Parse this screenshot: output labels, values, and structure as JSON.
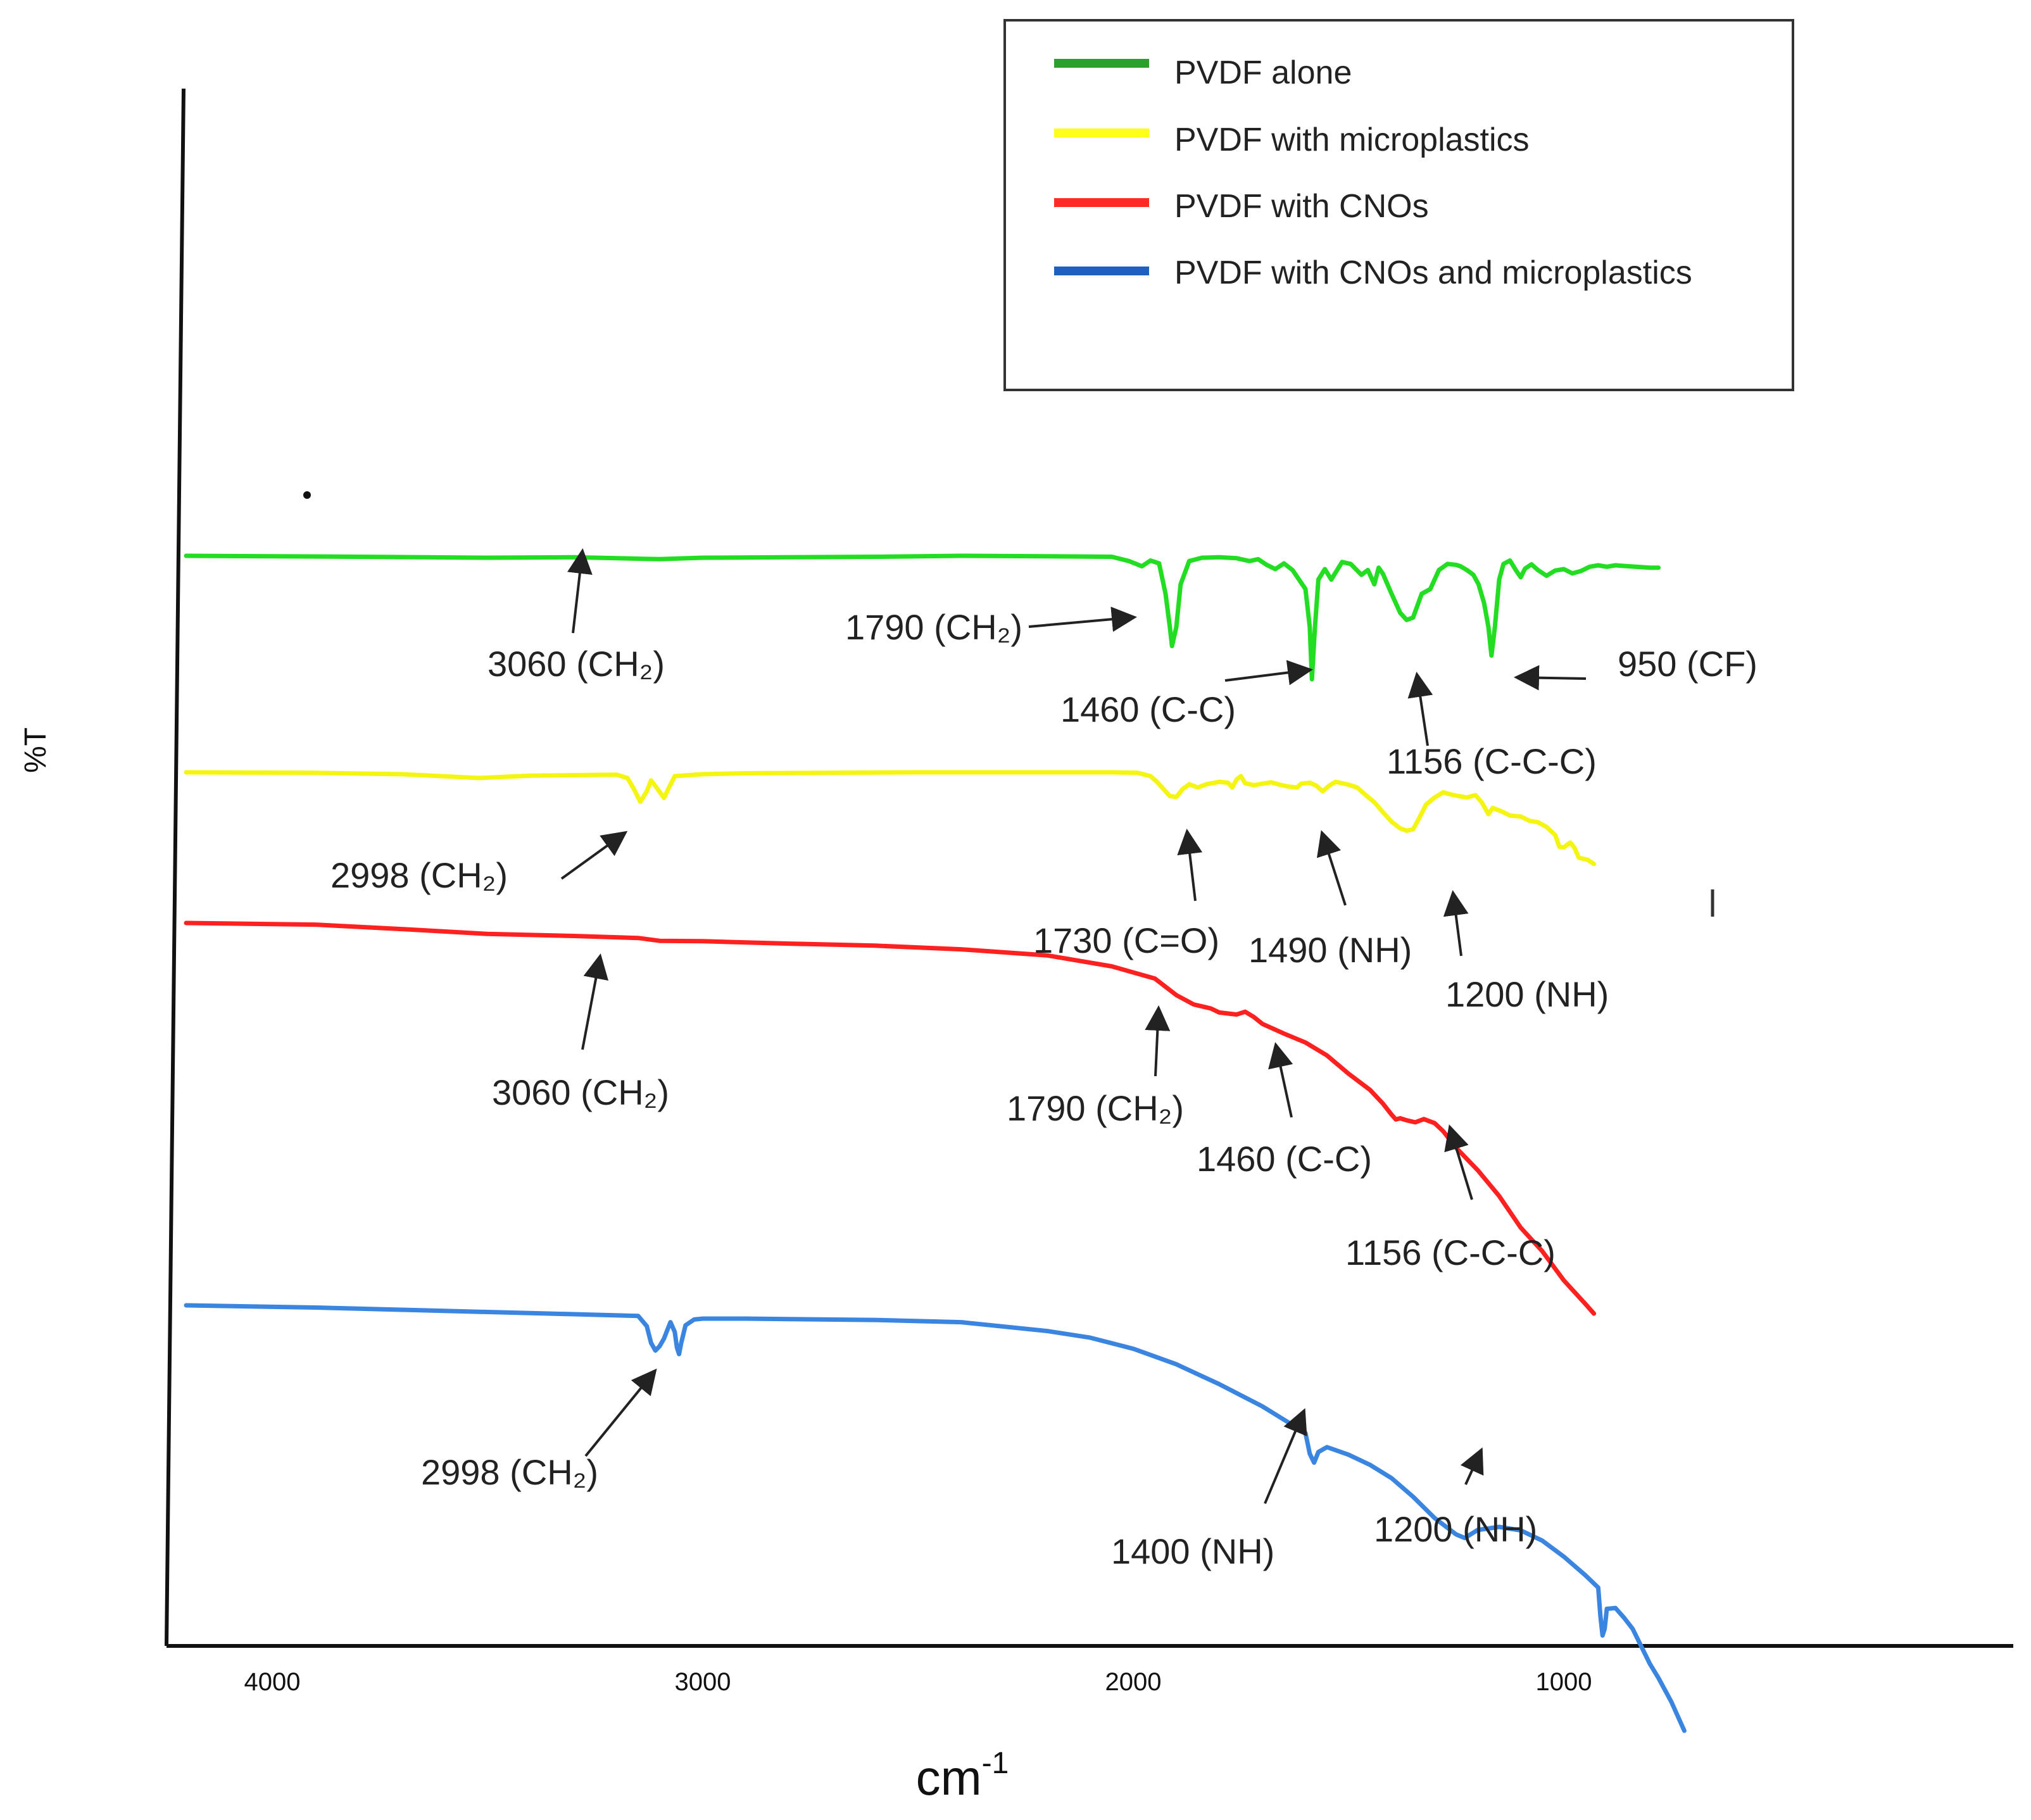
{
  "chart_data": {
    "type": "line",
    "title": "",
    "xlabel": "cm",
    "xlabel_superscript": "-1",
    "ylabel": "%T",
    "x_reversed": true,
    "xlim": [
      4200,
      0
    ],
    "x_ticks": [
      4000,
      3000,
      2000,
      1000
    ],
    "y_ticks": [],
    "grid": false,
    "legend_position": "top-right",
    "legend": [
      {
        "label": "PVDF alone",
        "color": "#2ca02c"
      },
      {
        "label": "PVDF with microplastics",
        "color": "#ffff1a"
      },
      {
        "label": "PVDF with CNOs",
        "color": "#ff2a2a"
      },
      {
        "label": "PVDF with CNOs and microplastics",
        "color": "#1f5fbf"
      }
    ],
    "series": [
      {
        "name": "PVDF alone",
        "color": "#22dd22",
        "offset": 100,
        "points": [
          [
            4200,
            100
          ],
          [
            3800,
            99.8
          ],
          [
            3500,
            99.6
          ],
          [
            3300,
            99.7
          ],
          [
            3200,
            99.5
          ],
          [
            3100,
            99.3
          ],
          [
            3000,
            99.6
          ],
          [
            2800,
            99.7
          ],
          [
            2600,
            99.8
          ],
          [
            2400,
            100
          ],
          [
            2200,
            99.9
          ],
          [
            2050,
            99.8
          ],
          [
            2010,
            98.9
          ],
          [
            1980,
            97.8
          ],
          [
            1960,
            99.0
          ],
          [
            1940,
            98.4
          ],
          [
            1925,
            92
          ],
          [
            1915,
            85
          ],
          [
            1910,
            81
          ],
          [
            1900,
            85
          ],
          [
            1890,
            94
          ],
          [
            1870,
            98.9
          ],
          [
            1840,
            99.6
          ],
          [
            1800,
            99.7
          ],
          [
            1760,
            99.5
          ],
          [
            1730,
            98.9
          ],
          [
            1710,
            99.3
          ],
          [
            1690,
            98.1
          ],
          [
            1670,
            97.2
          ],
          [
            1650,
            98.4
          ],
          [
            1630,
            97.0
          ],
          [
            1600,
            93
          ],
          [
            1590,
            85
          ],
          [
            1585,
            74
          ],
          [
            1578,
            85
          ],
          [
            1570,
            95
          ],
          [
            1555,
            97.2
          ],
          [
            1540,
            95
          ],
          [
            1515,
            98.7
          ],
          [
            1495,
            98.3
          ],
          [
            1470,
            96
          ],
          [
            1455,
            97
          ],
          [
            1440,
            94
          ],
          [
            1430,
            97.5
          ],
          [
            1420,
            96.2
          ],
          [
            1400,
            92
          ],
          [
            1380,
            88
          ],
          [
            1365,
            86.5
          ],
          [
            1350,
            87
          ],
          [
            1330,
            92
          ],
          [
            1310,
            93
          ],
          [
            1290,
            97
          ],
          [
            1270,
            98.3
          ],
          [
            1250,
            98.1
          ],
          [
            1240,
            97.8
          ],
          [
            1225,
            97
          ],
          [
            1210,
            96
          ],
          [
            1198,
            94
          ],
          [
            1185,
            90
          ],
          [
            1175,
            85
          ],
          [
            1168,
            79
          ],
          [
            1160,
            85
          ],
          [
            1150,
            95
          ],
          [
            1140,
            98.3
          ],
          [
            1125,
            99
          ],
          [
            1110,
            96.8
          ],
          [
            1100,
            95.5
          ],
          [
            1090,
            97.3
          ],
          [
            1075,
            98.2
          ],
          [
            1060,
            97.0
          ],
          [
            1040,
            95.8
          ],
          [
            1020,
            96.9
          ],
          [
            1000,
            97.2
          ],
          [
            980,
            96.3
          ],
          [
            960,
            96.8
          ],
          [
            940,
            97.7
          ],
          [
            920,
            98.0
          ],
          [
            900,
            97.7
          ],
          [
            880,
            98.0
          ],
          [
            850,
            97.8
          ],
          [
            800,
            97.5
          ],
          [
            780,
            97.5
          ]
        ]
      },
      {
        "name": "PVDF with microplastics",
        "color": "#f5f512",
        "offset": 65,
        "points": [
          [
            4200,
            100
          ],
          [
            3900,
            99.9
          ],
          [
            3700,
            99.6
          ],
          [
            3520,
            98.8
          ],
          [
            3400,
            99.3
          ],
          [
            3200,
            99.5
          ],
          [
            3175,
            98.8
          ],
          [
            3160,
            96.5
          ],
          [
            3145,
            93.8
          ],
          [
            3130,
            96.0
          ],
          [
            3120,
            98.3
          ],
          [
            3105,
            96.5
          ],
          [
            3090,
            94.6
          ],
          [
            3080,
            96.5
          ],
          [
            3065,
            99.2
          ],
          [
            3000,
            99.6
          ],
          [
            2900,
            99.8
          ],
          [
            2700,
            99.9
          ],
          [
            2500,
            100
          ],
          [
            2300,
            100
          ],
          [
            2150,
            100
          ],
          [
            2050,
            100
          ],
          [
            1990,
            99.9
          ],
          [
            1960,
            99.2
          ],
          [
            1945,
            98.0
          ],
          [
            1930,
            96.5
          ],
          [
            1915,
            95.0
          ],
          [
            1900,
            94.8
          ],
          [
            1885,
            96.5
          ],
          [
            1870,
            97.5
          ],
          [
            1850,
            96.8
          ],
          [
            1830,
            97.5
          ],
          [
            1800,
            98.0
          ],
          [
            1780,
            97.8
          ],
          [
            1770,
            96.8
          ],
          [
            1760,
            98.5
          ],
          [
            1750,
            99.2
          ],
          [
            1740,
            97.7
          ],
          [
            1720,
            97.3
          ],
          [
            1700,
            97.6
          ],
          [
            1680,
            97.9
          ],
          [
            1660,
            97.4
          ],
          [
            1640,
            97.0
          ],
          [
            1620,
            96.8
          ],
          [
            1610,
            97.6
          ],
          [
            1590,
            97.8
          ],
          [
            1575,
            97.2
          ],
          [
            1560,
            96.0
          ],
          [
            1545,
            97.2
          ],
          [
            1530,
            98.0
          ],
          [
            1500,
            97.4
          ],
          [
            1480,
            96.8
          ],
          [
            1460,
            95.2
          ],
          [
            1440,
            93.7
          ],
          [
            1420,
            91.6
          ],
          [
            1400,
            89.6
          ],
          [
            1380,
            88.2
          ],
          [
            1365,
            87.7
          ],
          [
            1350,
            88.0
          ],
          [
            1335,
            90.5
          ],
          [
            1320,
            93.2
          ],
          [
            1300,
            94.7
          ],
          [
            1280,
            95.8
          ],
          [
            1265,
            95.4
          ],
          [
            1245,
            95.0
          ],
          [
            1225,
            94.7
          ],
          [
            1205,
            95.2
          ],
          [
            1190,
            93.6
          ],
          [
            1180,
            92.0
          ],
          [
            1175,
            91.2
          ],
          [
            1165,
            92.5
          ],
          [
            1145,
            91.8
          ],
          [
            1125,
            90.9
          ],
          [
            1100,
            90.7
          ],
          [
            1080,
            89.8
          ],
          [
            1060,
            89.5
          ],
          [
            1040,
            88.5
          ],
          [
            1020,
            86.8
          ],
          [
            1010,
            84.3
          ],
          [
            1000,
            84.2
          ],
          [
            985,
            85.2
          ],
          [
            975,
            84.1
          ],
          [
            965,
            82.0
          ],
          [
            945,
            81.6
          ],
          [
            930,
            80.7
          ]
        ]
      },
      {
        "name": "PVDF with CNOs",
        "color": "#ff2020",
        "offset": 40,
        "points": [
          [
            4200,
            100
          ],
          [
            3900,
            99.6
          ],
          [
            3700,
            98.5
          ],
          [
            3500,
            97.3
          ],
          [
            3300,
            96.8
          ],
          [
            3150,
            96.3
          ],
          [
            3100,
            95.6
          ],
          [
            3000,
            95.5
          ],
          [
            2800,
            94.9
          ],
          [
            2600,
            94.4
          ],
          [
            2400,
            93.5
          ],
          [
            2200,
            92.0
          ],
          [
            2050,
            89.3
          ],
          [
            1950,
            86.3
          ],
          [
            1900,
            82.2
          ],
          [
            1860,
            79.9
          ],
          [
            1820,
            78.9
          ],
          [
            1800,
            77.9
          ],
          [
            1760,
            77.4
          ],
          [
            1740,
            78.1
          ],
          [
            1720,
            76.8
          ],
          [
            1700,
            75.1
          ],
          [
            1650,
            72.7
          ],
          [
            1600,
            70.5
          ],
          [
            1550,
            67.3
          ],
          [
            1500,
            62.8
          ],
          [
            1450,
            58.8
          ],
          [
            1420,
            55.4
          ],
          [
            1400,
            52.7
          ],
          [
            1390,
            51.5
          ],
          [
            1380,
            51.8
          ],
          [
            1365,
            51.3
          ],
          [
            1345,
            50.8
          ],
          [
            1325,
            51.6
          ],
          [
            1300,
            50.6
          ],
          [
            1280,
            48.6
          ],
          [
            1250,
            44.5
          ],
          [
            1200,
            39.0
          ],
          [
            1150,
            32.6
          ],
          [
            1100,
            24.8
          ],
          [
            1050,
            19.0
          ],
          [
            1000,
            11.8
          ],
          [
            950,
            6.0
          ],
          [
            930,
            3.6
          ]
        ]
      },
      {
        "name": "PVDF with CNOs and microplastics",
        "color": "#3a85e0",
        "offset": 0,
        "points": [
          [
            4200,
            100
          ],
          [
            3900,
            99.5
          ],
          [
            3700,
            99.0
          ],
          [
            3500,
            98.5
          ],
          [
            3300,
            98.0
          ],
          [
            3150,
            97.6
          ],
          [
            3130,
            95.3
          ],
          [
            3120,
            91.5
          ],
          [
            3110,
            89.8
          ],
          [
            3100,
            90.8
          ],
          [
            3090,
            92.5
          ],
          [
            3080,
            95.0
          ],
          [
            3075,
            96.2
          ],
          [
            3065,
            94.0
          ],
          [
            3060,
            90.5
          ],
          [
            3055,
            89.0
          ],
          [
            3050,
            91.5
          ],
          [
            3040,
            95.5
          ],
          [
            3020,
            96.8
          ],
          [
            3000,
            97.0
          ],
          [
            2900,
            97.0
          ],
          [
            2800,
            96.9
          ],
          [
            2600,
            96.7
          ],
          [
            2400,
            96.2
          ],
          [
            2200,
            94.2
          ],
          [
            2100,
            92.7
          ],
          [
            2000,
            90.2
          ],
          [
            1900,
            86.7
          ],
          [
            1800,
            82.2
          ],
          [
            1700,
            77.2
          ],
          [
            1600,
            71.2
          ],
          [
            1590,
            66.5
          ],
          [
            1580,
            64.5
          ],
          [
            1570,
            66.9
          ],
          [
            1550,
            68.0
          ],
          [
            1500,
            66.3
          ],
          [
            1450,
            64.0
          ],
          [
            1400,
            61.0
          ],
          [
            1350,
            56.8
          ],
          [
            1300,
            52.0
          ],
          [
            1250,
            48.3
          ],
          [
            1230,
            47.5
          ],
          [
            1200,
            49.3
          ],
          [
            1150,
            50.0
          ],
          [
            1100,
            49.2
          ],
          [
            1050,
            46.9
          ],
          [
            1000,
            43.3
          ],
          [
            950,
            39.1
          ],
          [
            920,
            36.3
          ],
          [
            915,
            30.0
          ],
          [
            910,
            25.5
          ],
          [
            905,
            27.0
          ],
          [
            900,
            31.5
          ],
          [
            880,
            31.7
          ],
          [
            860,
            29.5
          ],
          [
            840,
            27.0
          ],
          [
            800,
            19.1
          ],
          [
            780,
            15.9
          ],
          [
            750,
            10.5
          ],
          [
            720,
            4.0
          ]
        ]
      }
    ],
    "annotations": [
      {
        "text": "3060 (CH₂)",
        "series": "PVDF alone"
      },
      {
        "text": "1790 (CH₂)",
        "series": "PVDF alone"
      },
      {
        "text": "1460 (C-C)",
        "series": "PVDF alone"
      },
      {
        "text": "950 (CF)",
        "series": "PVDF alone"
      },
      {
        "text": "1156 (C-C-C)",
        "series": "PVDF alone"
      },
      {
        "text": "2998 (CH₂)",
        "series": "PVDF with microplastics"
      },
      {
        "text": "1730 (C=O)",
        "series": "PVDF with microplastics"
      },
      {
        "text": "1490 (NH)",
        "series": "PVDF with microplastics"
      },
      {
        "text": "1200 (NH)",
        "series": "PVDF with microplastics"
      },
      {
        "text": "3060 (CH₂)",
        "series": "PVDF with CNOs"
      },
      {
        "text": "1790 (CH₂)",
        "series": "PVDF with CNOs"
      },
      {
        "text": "1460 (C-C)",
        "series": "PVDF with CNOs"
      },
      {
        "text": "1156 (C-C-C)",
        "series": "PVDF with CNOs"
      },
      {
        "text": "2998 (CH₂)",
        "series": "PVDF with CNOs and microplastics"
      },
      {
        "text": "1400 (NH)",
        "series": "PVDF with CNOs and microplastics"
      },
      {
        "text": "1200 (NH)",
        "series": "PVDF with CNOs and microplastics"
      }
    ]
  }
}
